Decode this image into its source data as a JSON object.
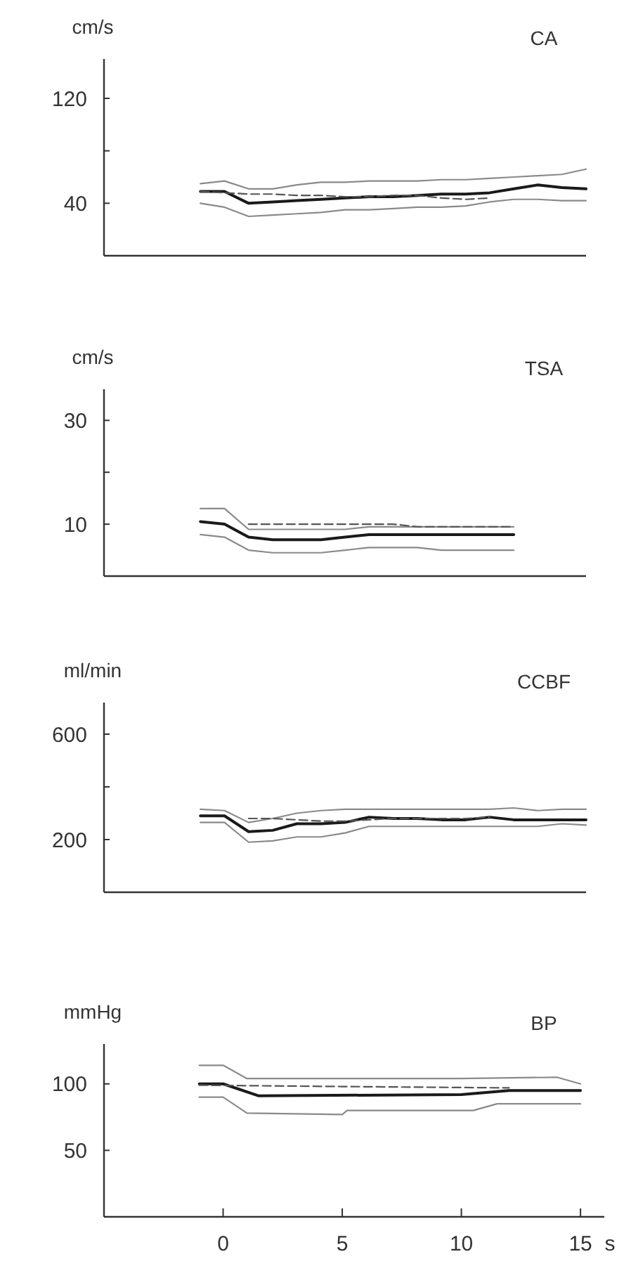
{
  "chart_data": [
    {
      "type": "line",
      "title": "CA",
      "ylabel": "cm/s",
      "categories": [
        null,
        null,
        null,
        null,
        null,
        null,
        null,
        null,
        null,
        null,
        null,
        null,
        null,
        null,
        null,
        null,
        null,
        null,
        null,
        null,
        null
      ],
      "ylim": [
        0,
        150
      ],
      "yticks": [
        40,
        {
          "value": 80,
          "label": null
        },
        120
      ],
      "tick_labels": "y",
      "grid": false,
      "marker": "none",
      "series": [
        {
          "color": "#1a1a1a",
          "line_style": "solid",
          "values": [
            null,
            null,
            null,
            null,
            49,
            49,
            40,
            41,
            42,
            43,
            44,
            45,
            45,
            46,
            47,
            47,
            48,
            51,
            54,
            52,
            51
          ]
        },
        {
          "color": "#8a8a8a",
          "line_style": "solid",
          "values": [
            null,
            null,
            null,
            null,
            55,
            57,
            51,
            51,
            54,
            56,
            56,
            57,
            57,
            57,
            58,
            58,
            59,
            60,
            61,
            62,
            66
          ]
        },
        {
          "color": "#8a8a8a",
          "line_style": "solid",
          "values": [
            null,
            null,
            null,
            null,
            40,
            37,
            30,
            31,
            32,
            33,
            35,
            35,
            36,
            37,
            37,
            38,
            41,
            43,
            43,
            42,
            42
          ]
        },
        {
          "color": "#555555",
          "line_style": "dashed",
          "values": [
            null,
            null,
            null,
            null,
            49,
            48,
            47,
            47,
            46,
            46,
            45,
            45,
            46,
            46,
            44,
            43,
            44,
            null,
            null,
            null,
            null
          ]
        }
      ]
    },
    {
      "type": "line",
      "title": "TSA",
      "ylabel": "cm/s",
      "categories": [
        null,
        null,
        null,
        null,
        null,
        null,
        null,
        null,
        null,
        null,
        null,
        null,
        null,
        null,
        null,
        null,
        null,
        null,
        null,
        null,
        null
      ],
      "ylim": [
        0,
        36
      ],
      "yticks": [
        10,
        {
          "value": 20,
          "label": null
        },
        30
      ],
      "tick_labels": "y",
      "grid": false,
      "marker": "none",
      "series": [
        {
          "color": "#1a1a1a",
          "line_style": "solid",
          "values": [
            null,
            null,
            null,
            null,
            10.5,
            10,
            7.5,
            7,
            7,
            7,
            7.5,
            8,
            8,
            8,
            8,
            8,
            8,
            8,
            null,
            null,
            null
          ]
        },
        {
          "color": "#8a8a8a",
          "line_style": "solid",
          "values": [
            null,
            null,
            null,
            null,
            13,
            13,
            9,
            9,
            9,
            9,
            9,
            9.5,
            9.5,
            9.5,
            9.5,
            9.5,
            9.5,
            9.5,
            null,
            null,
            null
          ]
        },
        {
          "color": "#8a8a8a",
          "line_style": "solid",
          "values": [
            null,
            null,
            null,
            null,
            8,
            7.5,
            5,
            4.5,
            4.5,
            4.5,
            5,
            5.5,
            5.5,
            5.5,
            5,
            5,
            5,
            5,
            null,
            null,
            null
          ]
        },
        {
          "color": "#555555",
          "line_style": "dashed",
          "values": [
            null,
            null,
            null,
            null,
            null,
            null,
            10,
            10,
            10,
            10,
            10,
            10,
            10,
            9.5,
            9.5,
            9.5,
            9.5,
            9.5,
            null,
            null,
            null
          ]
        }
      ]
    },
    {
      "type": "line",
      "title": "CCBF",
      "ylabel": "ml/min",
      "categories": [
        null,
        null,
        null,
        null,
        null,
        null,
        null,
        null,
        null,
        null,
        null,
        null,
        null,
        null,
        null,
        null,
        null,
        null,
        null,
        null,
        null
      ],
      "ylim": [
        0,
        720
      ],
      "yticks": [
        200,
        {
          "value": 400,
          "label": null
        },
        600
      ],
      "tick_labels": "y",
      "grid": false,
      "marker": "none",
      "series": [
        {
          "color": "#1a1a1a",
          "line_style": "solid",
          "values": [
            null,
            null,
            null,
            null,
            290,
            290,
            230,
            235,
            260,
            260,
            265,
            285,
            280,
            280,
            275,
            275,
            285,
            275,
            275,
            275,
            275
          ]
        },
        {
          "color": "#8a8a8a",
          "line_style": "solid",
          "values": [
            null,
            null,
            null,
            null,
            315,
            310,
            265,
            280,
            300,
            310,
            315,
            315,
            315,
            315,
            315,
            315,
            315,
            320,
            310,
            315,
            315
          ]
        },
        {
          "color": "#8a8a8a",
          "line_style": "solid",
          "values": [
            null,
            null,
            null,
            null,
            265,
            265,
            190,
            195,
            210,
            210,
            225,
            250,
            250,
            250,
            250,
            250,
            250,
            250,
            250,
            260,
            255
          ]
        },
        {
          "color": "#555555",
          "line_style": "dashed",
          "values": [
            null,
            null,
            null,
            null,
            null,
            null,
            280,
            280,
            275,
            270,
            270,
            275,
            280,
            280,
            280,
            280,
            285,
            null,
            null,
            null,
            null
          ]
        }
      ]
    },
    {
      "type": "line",
      "title": "BP",
      "ylabel": "mmHg",
      "xlabel": "s",
      "xlim": [
        -5,
        16
      ],
      "ylim": [
        0,
        130
      ],
      "xticks": [
        0,
        5,
        10,
        15
      ],
      "yticks": [
        50,
        100
      ],
      "grid": false,
      "marker": "none",
      "series": [
        {
          "color": "#1a1a1a",
          "line_style": "solid",
          "x": [
            -1,
            0,
            1.5,
            10,
            12,
            15
          ],
          "values": [
            100,
            100,
            91,
            92,
            95,
            95
          ]
        },
        {
          "color": "#8a8a8a",
          "line_style": "solid",
          "x": [
            -1,
            0,
            1,
            10,
            14,
            15
          ],
          "values": [
            114,
            114,
            104,
            104,
            105,
            100
          ]
        },
        {
          "color": "#8a8a8a",
          "line_style": "solid",
          "x": [
            -1,
            0,
            1,
            5,
            5.2,
            10.5,
            11.5,
            15
          ],
          "values": [
            90,
            90,
            78,
            77,
            80,
            80,
            85,
            85
          ]
        },
        {
          "color": "#555555",
          "line_style": "dashed",
          "x": [
            -1,
            5,
            12
          ],
          "values": [
            99,
            98,
            97
          ]
        }
      ]
    }
  ]
}
